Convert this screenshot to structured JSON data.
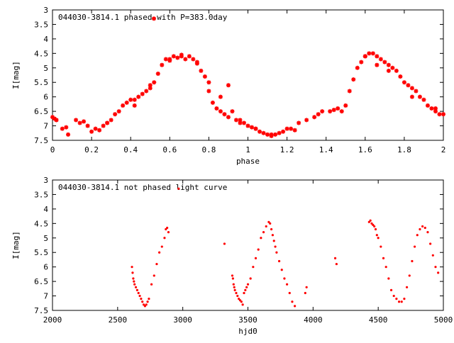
{
  "colors": {
    "series": "#ff0000",
    "axis": "#000000",
    "background": "#ffffff"
  },
  "chart_data": [
    {
      "type": "scatter",
      "title": "044030-3814.1 phased with P=383.0day",
      "xlabel": "phase",
      "ylabel": "I[mag]",
      "xlim": [
        0,
        2
      ],
      "ylim": [
        7.5,
        3
      ],
      "y_inverted": true,
      "legend": "top-left",
      "grid": false,
      "marker": "star",
      "xticks": [
        "0",
        "0.2",
        "0.4",
        "0.6",
        "0.8",
        "1",
        "1.2",
        "1.4",
        "1.6",
        "1.8",
        "2"
      ],
      "yticks": [
        "3",
        "3.5",
        "4",
        "4.5",
        "5",
        "5.5",
        "6",
        "6.5",
        "7",
        "7.5"
      ],
      "legend_marker_point": [
        0,
        3.3
      ],
      "series": [
        {
          "x": [
            0.0,
            0.01,
            0.02,
            0.05,
            0.07,
            0.08,
            0.12,
            0.14,
            0.16,
            0.18,
            0.2,
            0.22,
            0.24,
            0.26,
            0.28,
            0.3,
            0.32,
            0.34,
            0.36,
            0.38,
            0.4,
            0.42,
            0.44,
            0.46,
            0.48,
            0.5,
            0.52,
            0.54,
            0.56,
            0.58,
            0.6,
            0.62,
            0.64,
            0.66,
            0.68,
            0.7,
            0.72,
            0.74,
            0.76,
            0.78,
            0.8,
            0.82,
            0.84,
            0.86,
            0.88,
            0.9,
            0.92,
            0.94,
            0.96,
            0.98,
            1.0,
            1.02,
            1.04,
            1.06,
            1.08,
            1.1,
            1.12,
            1.14,
            1.16,
            1.18,
            1.2,
            1.22,
            1.26,
            1.3,
            1.34,
            1.38,
            1.42,
            1.46,
            1.48,
            1.5,
            1.52,
            1.54,
            1.56,
            1.58,
            1.6,
            1.62,
            1.64,
            1.66,
            1.68,
            1.7,
            1.72,
            1.74,
            1.76,
            1.78,
            1.8,
            1.82,
            1.84,
            1.86,
            1.88,
            1.9,
            1.92,
            1.94,
            1.96,
            1.98,
            2.0
          ],
          "y": [
            6.7,
            6.75,
            6.8,
            7.1,
            7.05,
            7.3,
            6.8,
            6.9,
            6.85,
            7.0,
            7.2,
            7.1,
            7.15,
            7.0,
            6.9,
            6.8,
            6.6,
            6.5,
            6.3,
            6.2,
            6.1,
            6.3,
            6.0,
            5.9,
            5.8,
            5.7,
            5.5,
            5.2,
            4.9,
            4.7,
            4.7,
            4.6,
            4.65,
            4.55,
            4.7,
            4.6,
            4.7,
            4.85,
            5.1,
            5.3,
            5.5,
            6.2,
            6.4,
            6.5,
            6.6,
            6.7,
            6.5,
            6.8,
            6.8,
            6.9,
            7.0,
            7.05,
            7.1,
            7.2,
            7.25,
            7.3,
            7.35,
            7.3,
            7.25,
            7.2,
            7.1,
            7.1,
            6.9,
            6.8,
            6.7,
            6.5,
            6.5,
            6.4,
            6.5,
            6.3,
            5.8,
            5.4,
            5.0,
            4.8,
            4.6,
            4.5,
            4.5,
            4.6,
            4.7,
            4.8,
            4.9,
            5.0,
            5.1,
            5.3,
            5.5,
            5.6,
            5.7,
            5.8,
            6.0,
            6.1,
            6.3,
            6.4,
            6.5,
            6.6,
            6.6
          ]
        },
        {
          "x": [
            0.02,
            0.28,
            0.42,
            0.5,
            0.6,
            0.66,
            0.74,
            0.8,
            0.86,
            0.9,
            0.96,
            1.04,
            1.12,
            1.24,
            1.36,
            1.44,
            1.6,
            1.66,
            1.72,
            1.84,
            1.96
          ],
          "y": [
            6.8,
            6.9,
            6.1,
            5.6,
            4.75,
            4.6,
            4.8,
            5.8,
            6.0,
            5.6,
            6.9,
            7.1,
            7.3,
            7.15,
            6.6,
            6.45,
            4.6,
            4.9,
            5.1,
            6.0,
            6.4
          ]
        }
      ]
    },
    {
      "type": "scatter",
      "title": "044030-3814.1 not phased light curve",
      "xlabel": "hjd0",
      "ylabel": "I[mag]",
      "xlim": [
        2000,
        5000
      ],
      "ylim": [
        7.5,
        3
      ],
      "y_inverted": true,
      "legend": "top-left",
      "grid": false,
      "marker": "dot",
      "xticks": [
        "2000",
        "2500",
        "3000",
        "3500",
        "4000",
        "4500",
        "5000"
      ],
      "yticks": [
        "3",
        "3.5",
        "4",
        "4.5",
        "5",
        "5.5",
        "6",
        "6.5",
        "7",
        "7.5"
      ],
      "legend_marker_point": [
        2500,
        3.3
      ],
      "series": [
        {
          "x": [
            2610,
            2615,
            2620,
            2625,
            2630,
            2640,
            2650,
            2660,
            2670,
            2680,
            2690,
            2700,
            2710,
            2720,
            2730,
            2740,
            2760,
            2780,
            2800,
            2820,
            2840,
            2860,
            2870,
            2880,
            2890,
            3320,
            3380,
            3385,
            3390,
            3395,
            3400,
            3410,
            3420,
            3430,
            3440,
            3450,
            3460,
            3470,
            3480,
            3490,
            3500,
            3520,
            3540,
            3560,
            3580,
            3600,
            3620,
            3640,
            3660,
            3670,
            3680,
            3690,
            3700,
            3710,
            3720,
            3740,
            3760,
            3780,
            3800,
            3820,
            3840,
            3860,
            3940,
            3950,
            4170,
            4180,
            4430,
            4440,
            4450,
            4460,
            4470,
            4480,
            4490,
            4500,
            4520,
            4540,
            4560,
            4580,
            4600,
            4620,
            4640,
            4660,
            4680,
            4700,
            4720,
            4740,
            4760,
            4780,
            4800,
            4820,
            4840,
            4860,
            4880,
            4900,
            4920,
            4940,
            4960
          ],
          "y": [
            6.0,
            6.2,
            6.4,
            6.5,
            6.6,
            6.7,
            6.8,
            6.9,
            7.0,
            7.1,
            7.2,
            7.3,
            7.35,
            7.3,
            7.2,
            7.1,
            6.6,
            6.3,
            5.9,
            5.5,
            5.3,
            5.0,
            4.7,
            4.65,
            4.8,
            5.2,
            6.3,
            6.4,
            6.6,
            6.7,
            6.8,
            6.9,
            7.0,
            7.1,
            7.15,
            7.2,
            7.3,
            6.9,
            6.8,
            6.7,
            6.6,
            6.4,
            6.0,
            5.7,
            5.4,
            5.0,
            4.8,
            4.6,
            4.45,
            4.5,
            4.7,
            4.9,
            5.1,
            5.3,
            5.5,
            5.8,
            6.1,
            6.4,
            6.6,
            6.9,
            7.2,
            7.35,
            6.9,
            6.7,
            5.7,
            5.9,
            4.45,
            4.4,
            4.5,
            4.55,
            4.6,
            4.7,
            4.9,
            5.0,
            5.3,
            5.7,
            6.0,
            6.4,
            6.8,
            7.0,
            7.1,
            7.2,
            7.2,
            7.1,
            6.7,
            6.3,
            5.8,
            5.3,
            4.9,
            4.7,
            4.6,
            4.65,
            4.8,
            5.2,
            5.6,
            6.0,
            6.2
          ]
        }
      ]
    }
  ]
}
